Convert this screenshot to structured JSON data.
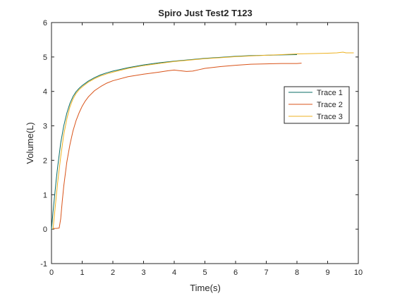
{
  "chart_data": {
    "type": "line",
    "title": "Spiro Just Test2 T123",
    "xlabel": "Time(s)",
    "ylabel": "Volume(L)",
    "xlim": [
      0,
      10
    ],
    "ylim": [
      -1,
      6
    ],
    "xticks": [
      0,
      1,
      2,
      3,
      4,
      5,
      6,
      7,
      8,
      9,
      10
    ],
    "yticks": [
      -1,
      0,
      1,
      2,
      3,
      4,
      5,
      6
    ],
    "grid": false,
    "legend": "right",
    "series": [
      {
        "name": "Trace 1",
        "color": "#0a6e66",
        "x": [
          0,
          0.05,
          0.1,
          0.15,
          0.2,
          0.3,
          0.4,
          0.5,
          0.6,
          0.7,
          0.8,
          0.9,
          1.0,
          1.2,
          1.4,
          1.6,
          1.8,
          2.0,
          2.5,
          3.0,
          3.5,
          4.0,
          4.5,
          5.0,
          5.5,
          6.0,
          6.5,
          7.0,
          7.5,
          8.0
        ],
        "y": [
          0,
          0.5,
          0.95,
          1.4,
          1.8,
          2.5,
          3.0,
          3.37,
          3.65,
          3.85,
          3.99,
          4.09,
          4.17,
          4.3,
          4.4,
          4.48,
          4.54,
          4.59,
          4.69,
          4.77,
          4.83,
          4.88,
          4.92,
          4.96,
          4.99,
          5.02,
          5.04,
          5.05,
          5.06,
          5.07
        ]
      },
      {
        "name": "Trace 2",
        "color": "#d95319",
        "x": [
          0.05,
          0.15,
          0.25,
          0.3,
          0.35,
          0.4,
          0.5,
          0.6,
          0.7,
          0.8,
          0.9,
          1.0,
          1.1,
          1.2,
          1.4,
          1.6,
          1.8,
          2.0,
          2.5,
          3.0,
          3.5,
          3.8,
          4.0,
          4.2,
          4.4,
          4.6,
          4.8,
          5.0,
          5.5,
          6.0,
          6.5,
          7.0,
          7.5,
          8.0,
          8.15
        ],
        "y": [
          0.02,
          0.02,
          0.03,
          0.3,
          0.8,
          1.25,
          1.95,
          2.45,
          2.85,
          3.15,
          3.38,
          3.57,
          3.72,
          3.84,
          4.02,
          4.14,
          4.24,
          4.31,
          4.43,
          4.5,
          4.56,
          4.6,
          4.62,
          4.6,
          4.58,
          4.59,
          4.63,
          4.67,
          4.72,
          4.76,
          4.79,
          4.8,
          4.81,
          4.81,
          4.82
        ]
      },
      {
        "name": "Trace 3",
        "color": "#edb120",
        "x": [
          0.05,
          0.1,
          0.15,
          0.2,
          0.3,
          0.4,
          0.5,
          0.6,
          0.7,
          0.8,
          0.9,
          1.0,
          1.2,
          1.4,
          1.6,
          1.8,
          2.0,
          2.5,
          3.0,
          3.5,
          4.0,
          4.5,
          5.0,
          5.5,
          6.0,
          6.5,
          7.0,
          7.5,
          8.0,
          8.5,
          9.0,
          9.3,
          9.5,
          9.6,
          9.85
        ],
        "y": [
          0,
          0.45,
          0.9,
          1.35,
          2.1,
          2.75,
          3.2,
          3.55,
          3.78,
          3.94,
          4.05,
          4.13,
          4.27,
          4.37,
          4.45,
          4.51,
          4.56,
          4.67,
          4.75,
          4.81,
          4.87,
          4.91,
          4.95,
          4.98,
          5.01,
          5.03,
          5.05,
          5.07,
          5.09,
          5.1,
          5.11,
          5.12,
          5.14,
          5.12,
          5.12
        ]
      }
    ]
  }
}
